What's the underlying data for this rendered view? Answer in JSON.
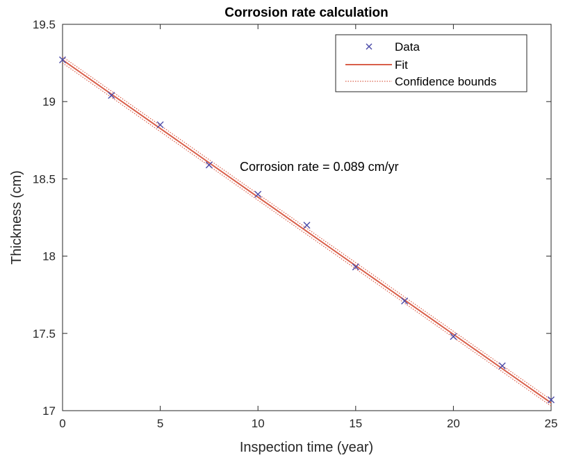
{
  "chart_data": {
    "type": "scatter",
    "title": "Corrosion rate calculation",
    "xlabel": "Inspection time (year)",
    "ylabel": "Thickness (cm)",
    "xlim": [
      0,
      25
    ],
    "ylim": [
      17,
      19.5
    ],
    "xticks": [
      0,
      5,
      10,
      15,
      20,
      25
    ],
    "yticks": [
      17,
      17.5,
      18,
      18.5,
      19,
      19.5
    ],
    "xtick_labels": [
      "0",
      "5",
      "10",
      "15",
      "20",
      "25"
    ],
    "ytick_labels": [
      "17",
      "17.5",
      "18",
      "18.5",
      "19",
      "19.5"
    ],
    "grid": false,
    "legend_position": "top-right",
    "series": [
      {
        "name": "Data",
        "kind": "marker",
        "marker": "x",
        "color": "#4a4aa8",
        "x": [
          0,
          2.5,
          5,
          7.5,
          10,
          12.5,
          15,
          17.5,
          20,
          22.5,
          25
        ],
        "y": [
          19.27,
          19.04,
          18.85,
          18.59,
          18.4,
          18.2,
          17.93,
          17.71,
          17.48,
          17.29,
          17.07
        ]
      },
      {
        "name": "Fit",
        "kind": "line",
        "color": "#d95f4a",
        "x": [
          0,
          25
        ],
        "y": [
          19.27,
          17.05
        ]
      },
      {
        "name": "Confidence bounds",
        "kind": "dotted-line",
        "color": "#d95f4a",
        "bounds": [
          {
            "x": [
              0,
              25
            ],
            "y": [
              19.29,
              17.07
            ]
          },
          {
            "x": [
              0,
              25
            ],
            "y": [
              19.25,
              17.03
            ]
          }
        ]
      }
    ],
    "annotations": [
      {
        "text": "Corrosion rate = 0.089 cm/yr",
        "x": 9.1,
        "y": 18.55
      }
    ]
  }
}
